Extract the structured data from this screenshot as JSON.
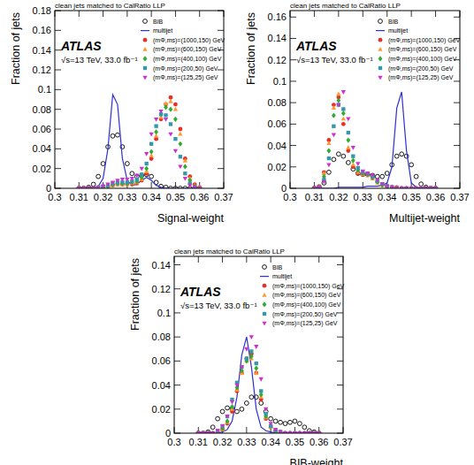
{
  "chart_data": [
    {
      "type": "line",
      "title": "clean jets matched to CalRatio LLP",
      "annotations": [
        "ATLAS",
        "√s=13 TeV, 33.0 fb⁻¹"
      ],
      "x_label": "Signal-weight",
      "y_label": "Fraction of jets",
      "xlim": [
        0.3,
        0.37
      ],
      "xticks": [
        0.3,
        0.31,
        0.32,
        0.33,
        0.34,
        0.35,
        0.36,
        0.37
      ],
      "ylim": [
        0,
        0.18
      ],
      "yticks": [
        0,
        0.02,
        0.04,
        0.06,
        0.08,
        0.1,
        0.12,
        0.14,
        0.16,
        0.18
      ],
      "legend": "upper right",
      "x": [
        0.31,
        0.312,
        0.314,
        0.316,
        0.318,
        0.32,
        0.322,
        0.324,
        0.326,
        0.328,
        0.33,
        0.332,
        0.334,
        0.336,
        0.338,
        0.34,
        0.342,
        0.344,
        0.346,
        0.348,
        0.35,
        0.352,
        0.354,
        0.356,
        0.358,
        0.36
      ],
      "series": [
        {
          "name": "BIB",
          "type": "scatter",
          "marker": "circle-open",
          "color": "#000000",
          "values": [
            0,
            0,
            0.001,
            0.004,
            0.012,
            0.025,
            0.042,
            0.053,
            0.054,
            0.042,
            0.025,
            0.015,
            0.012,
            0.013,
            0.014,
            0.012,
            0.006,
            0.002,
            0.001,
            0,
            0,
            0,
            0,
            0,
            0,
            0
          ]
        },
        {
          "name": "multijet",
          "type": "line",
          "line_style": "solid",
          "color": "#3030d0",
          "values": [
            0,
            0,
            0,
            0,
            0.002,
            0.01,
            0.04,
            0.095,
            0.085,
            0.03,
            0.008,
            0.003,
            0.004,
            0.008,
            0.011,
            0.008,
            0.003,
            0.001,
            0,
            0,
            0,
            0,
            0,
            0,
            0,
            0
          ]
        },
        {
          "name": "(mΦ,ms)=(1000,150) GeV",
          "type": "scatter",
          "marker": "circle",
          "color": "#e8302a",
          "values": [
            0,
            0,
            0,
            0,
            0,
            0.001,
            0.002,
            0.003,
            0.004,
            0.004,
            0.004,
            0.004,
            0.005,
            0.008,
            0.015,
            0.03,
            0.05,
            0.07,
            0.085,
            0.092,
            0.085,
            0.06,
            0.03,
            0.012,
            0.004,
            0.001
          ]
        },
        {
          "name": "(mΦ,ms)=(600,150) GeV",
          "type": "scatter",
          "marker": "triangle-up",
          "color": "#ff9933",
          "values": [
            0,
            0,
            0,
            0,
            0,
            0.001,
            0.002,
            0.003,
            0.004,
            0.004,
            0.004,
            0.005,
            0.006,
            0.009,
            0.017,
            0.033,
            0.053,
            0.072,
            0.086,
            0.088,
            0.08,
            0.055,
            0.028,
            0.01,
            0.003,
            0.001
          ]
        },
        {
          "name": "(mΦ,ms)=(400,100) GeV",
          "type": "scatter",
          "marker": "diamond",
          "color": "#33aa33",
          "values": [
            0,
            0,
            0,
            0,
            0.001,
            0.001,
            0.002,
            0.004,
            0.005,
            0.005,
            0.005,
            0.006,
            0.007,
            0.011,
            0.02,
            0.037,
            0.057,
            0.075,
            0.082,
            0.08,
            0.07,
            0.045,
            0.022,
            0.008,
            0.002,
            0
          ]
        },
        {
          "name": "(mΦ,ms)=(200,50) GeV",
          "type": "scatter",
          "marker": "square",
          "color": "#3399aa",
          "values": [
            0,
            0,
            0,
            0,
            0.001,
            0.002,
            0.003,
            0.005,
            0.006,
            0.006,
            0.006,
            0.007,
            0.009,
            0.014,
            0.025,
            0.045,
            0.063,
            0.075,
            0.074,
            0.065,
            0.05,
            0.032,
            0.015,
            0.005,
            0.001,
            0
          ]
        },
        {
          "name": "(mΦ,ms)=(125,25) GeV",
          "type": "scatter",
          "marker": "triangle-down",
          "color": "#cc33cc",
          "values": [
            0,
            0,
            0,
            0,
            0.001,
            0.002,
            0.004,
            0.006,
            0.008,
            0.009,
            0.009,
            0.01,
            0.013,
            0.02,
            0.035,
            0.055,
            0.07,
            0.078,
            0.07,
            0.055,
            0.038,
            0.022,
            0.01,
            0.003,
            0.001,
            0
          ]
        }
      ]
    },
    {
      "type": "line",
      "title": "clean jets matched to CalRatio LLP",
      "annotations": [
        "ATLAS",
        "√s=13 TeV, 33.0 fb⁻¹"
      ],
      "x_label": "Multijet-weight",
      "y_label": "Fraction of jets",
      "xlim": [
        0.3,
        0.37
      ],
      "xticks": [
        0.3,
        0.31,
        0.32,
        0.33,
        0.34,
        0.35,
        0.36,
        0.37
      ],
      "ylim": [
        0,
        0.166
      ],
      "yticks": [
        0,
        0.02,
        0.04,
        0.06,
        0.08,
        0.1,
        0.12,
        0.14,
        0.16
      ],
      "legend": "upper right",
      "x": [
        0.31,
        0.312,
        0.314,
        0.316,
        0.318,
        0.32,
        0.322,
        0.324,
        0.326,
        0.328,
        0.33,
        0.332,
        0.334,
        0.336,
        0.338,
        0.34,
        0.342,
        0.344,
        0.346,
        0.348,
        0.35,
        0.352,
        0.354,
        0.356,
        0.358,
        0.36
      ],
      "series": [
        {
          "name": "BIB",
          "type": "scatter",
          "marker": "circle-open",
          "color": "#000000",
          "values": [
            0,
            0.001,
            0.005,
            0.015,
            0.027,
            0.032,
            0.03,
            0.024,
            0.018,
            0.014,
            0.013,
            0.013,
            0.012,
            0.011,
            0.011,
            0.014,
            0.022,
            0.03,
            0.032,
            0.03,
            0.022,
            0.011,
            0.004,
            0.001,
            0,
            0
          ]
        },
        {
          "name": "multijet",
          "type": "line",
          "line_style": "solid",
          "color": "#3030d0",
          "values": [
            0,
            0,
            0,
            0,
            0,
            0.001,
            0.001,
            0.001,
            0.001,
            0.001,
            0.001,
            0.002,
            0.002,
            0.002,
            0.003,
            0.005,
            0.02,
            0.075,
            0.09,
            0.035,
            0.005,
            0.001,
            0,
            0,
            0,
            0
          ]
        },
        {
          "name": "(mΦ,ms)=(1000,150) GeV",
          "type": "scatter",
          "marker": "circle",
          "color": "#e8302a",
          "values": [
            0,
            0.002,
            0.015,
            0.045,
            0.078,
            0.085,
            0.06,
            0.035,
            0.02,
            0.014,
            0.013,
            0.013,
            0.01,
            0.006,
            0.003,
            0.002,
            0.001,
            0.001,
            0,
            0,
            0,
            0,
            0,
            0,
            0,
            0
          ]
        },
        {
          "name": "(mΦ,ms)=(600,150) GeV",
          "type": "scatter",
          "marker": "triangle-up",
          "color": "#ff9933",
          "values": [
            0,
            0.002,
            0.014,
            0.042,
            0.075,
            0.088,
            0.065,
            0.038,
            0.022,
            0.015,
            0.013,
            0.012,
            0.009,
            0.005,
            0.003,
            0.002,
            0.001,
            0,
            0,
            0,
            0,
            0,
            0,
            0,
            0,
            0
          ]
        },
        {
          "name": "(mΦ,ms)=(400,100) GeV",
          "type": "scatter",
          "marker": "diamond",
          "color": "#33aa33",
          "values": [
            0,
            0.001,
            0.011,
            0.035,
            0.068,
            0.082,
            0.07,
            0.045,
            0.026,
            0.017,
            0.014,
            0.013,
            0.01,
            0.006,
            0.003,
            0.002,
            0.001,
            0,
            0,
            0,
            0,
            0,
            0,
            0,
            0,
            0
          ]
        },
        {
          "name": "(mΦ,ms)=(200,50) GeV",
          "type": "scatter",
          "marker": "square",
          "color": "#3399aa",
          "values": [
            0,
            0.001,
            0.008,
            0.028,
            0.058,
            0.078,
            0.074,
            0.052,
            0.03,
            0.019,
            0.015,
            0.014,
            0.011,
            0.007,
            0.004,
            0.002,
            0.001,
            0,
            0,
            0,
            0,
            0,
            0,
            0,
            0,
            0
          ]
        },
        {
          "name": "(mΦ,ms)=(125,25) GeV",
          "type": "scatter",
          "marker": "triangle-down",
          "color": "#cc33cc",
          "values": [
            0,
            0.001,
            0.006,
            0.022,
            0.05,
            0.078,
            0.09,
            0.065,
            0.038,
            0.023,
            0.016,
            0.014,
            0.012,
            0.008,
            0.004,
            0.002,
            0.001,
            0,
            0,
            0,
            0,
            0,
            0,
            0,
            0,
            0
          ]
        }
      ]
    },
    {
      "type": "line",
      "title": "clean jets matched to CalRatio LLP",
      "annotations": [
        "ATLAS",
        "√s=13 TeV, 33.0 fb⁻¹"
      ],
      "x_label": "BIB-weight",
      "y_label": "Fraction of jets",
      "xlim": [
        0.3,
        0.37
      ],
      "xticks": [
        0.3,
        0.31,
        0.32,
        0.33,
        0.34,
        0.35,
        0.36,
        0.37
      ],
      "ylim": [
        0,
        0.147
      ],
      "yticks": [
        0,
        0.02,
        0.04,
        0.06,
        0.08,
        0.1,
        0.12,
        0.14
      ],
      "legend": "upper right",
      "x": [
        0.31,
        0.312,
        0.314,
        0.316,
        0.318,
        0.32,
        0.322,
        0.324,
        0.326,
        0.328,
        0.33,
        0.332,
        0.334,
        0.336,
        0.338,
        0.34,
        0.342,
        0.344,
        0.346,
        0.348,
        0.35,
        0.352,
        0.354,
        0.356,
        0.358,
        0.36
      ],
      "series": [
        {
          "name": "BIB",
          "type": "scatter",
          "marker": "circle-open",
          "color": "#000000",
          "values": [
            0,
            0,
            0.001,
            0.005,
            0.012,
            0.018,
            0.021,
            0.02,
            0.018,
            0.02,
            0.025,
            0.03,
            0.03,
            0.025,
            0.018,
            0.012,
            0.01,
            0.009,
            0.008,
            0.009,
            0.01,
            0.008,
            0.005,
            0.002,
            0.001,
            0
          ]
        },
        {
          "name": "multijet",
          "type": "line",
          "line_style": "solid",
          "color": "#3030d0",
          "values": [
            0,
            0,
            0,
            0,
            0,
            0.001,
            0.003,
            0.01,
            0.03,
            0.065,
            0.08,
            0.055,
            0.02,
            0.005,
            0.002,
            0.001,
            0,
            0,
            0,
            0,
            0,
            0,
            0,
            0,
            0,
            0
          ]
        },
        {
          "name": "(mΦ,ms)=(1000,150) GeV",
          "type": "scatter",
          "marker": "circle",
          "color": "#e8302a",
          "values": [
            0,
            0,
            0,
            0,
            0.001,
            0.003,
            0.008,
            0.018,
            0.035,
            0.05,
            0.062,
            0.066,
            0.05,
            0.028,
            0.012,
            0.005,
            0.002,
            0.001,
            0,
            0,
            0,
            0,
            0,
            0,
            0,
            0
          ]
        },
        {
          "name": "(mΦ,ms)=(600,150) GeV",
          "type": "scatter",
          "marker": "triangle-up",
          "color": "#ff9933",
          "values": [
            0,
            0,
            0,
            0,
            0.001,
            0.003,
            0.009,
            0.02,
            0.036,
            0.05,
            0.06,
            0.062,
            0.05,
            0.03,
            0.013,
            0.005,
            0.002,
            0.001,
            0,
            0,
            0,
            0,
            0,
            0,
            0,
            0
          ]
        },
        {
          "name": "(mΦ,ms)=(400,100) GeV",
          "type": "scatter",
          "marker": "diamond",
          "color": "#33aa33",
          "values": [
            0,
            0,
            0,
            0,
            0.001,
            0.004,
            0.01,
            0.022,
            0.038,
            0.052,
            0.06,
            0.064,
            0.054,
            0.032,
            0.014,
            0.006,
            0.002,
            0.001,
            0,
            0,
            0,
            0,
            0,
            0,
            0,
            0
          ]
        },
        {
          "name": "(mΦ,ms)=(200,50) GeV",
          "type": "scatter",
          "marker": "square",
          "color": "#3399aa",
          "values": [
            0,
            0,
            0,
            0,
            0.002,
            0.006,
            0.014,
            0.028,
            0.042,
            0.055,
            0.062,
            0.068,
            0.058,
            0.035,
            0.016,
            0.006,
            0.002,
            0.001,
            0,
            0,
            0,
            0,
            0,
            0,
            0,
            0
          ]
        },
        {
          "name": "(mΦ,ms)=(125,25) GeV",
          "type": "scatter",
          "marker": "triangle-down",
          "color": "#cc33cc",
          "values": [
            0,
            0,
            0,
            0,
            0.002,
            0.006,
            0.014,
            0.026,
            0.04,
            0.055,
            0.07,
            0.08,
            0.072,
            0.045,
            0.02,
            0.008,
            0.003,
            0.001,
            0,
            0,
            0,
            0,
            0,
            0,
            0,
            0
          ]
        }
      ]
    }
  ]
}
